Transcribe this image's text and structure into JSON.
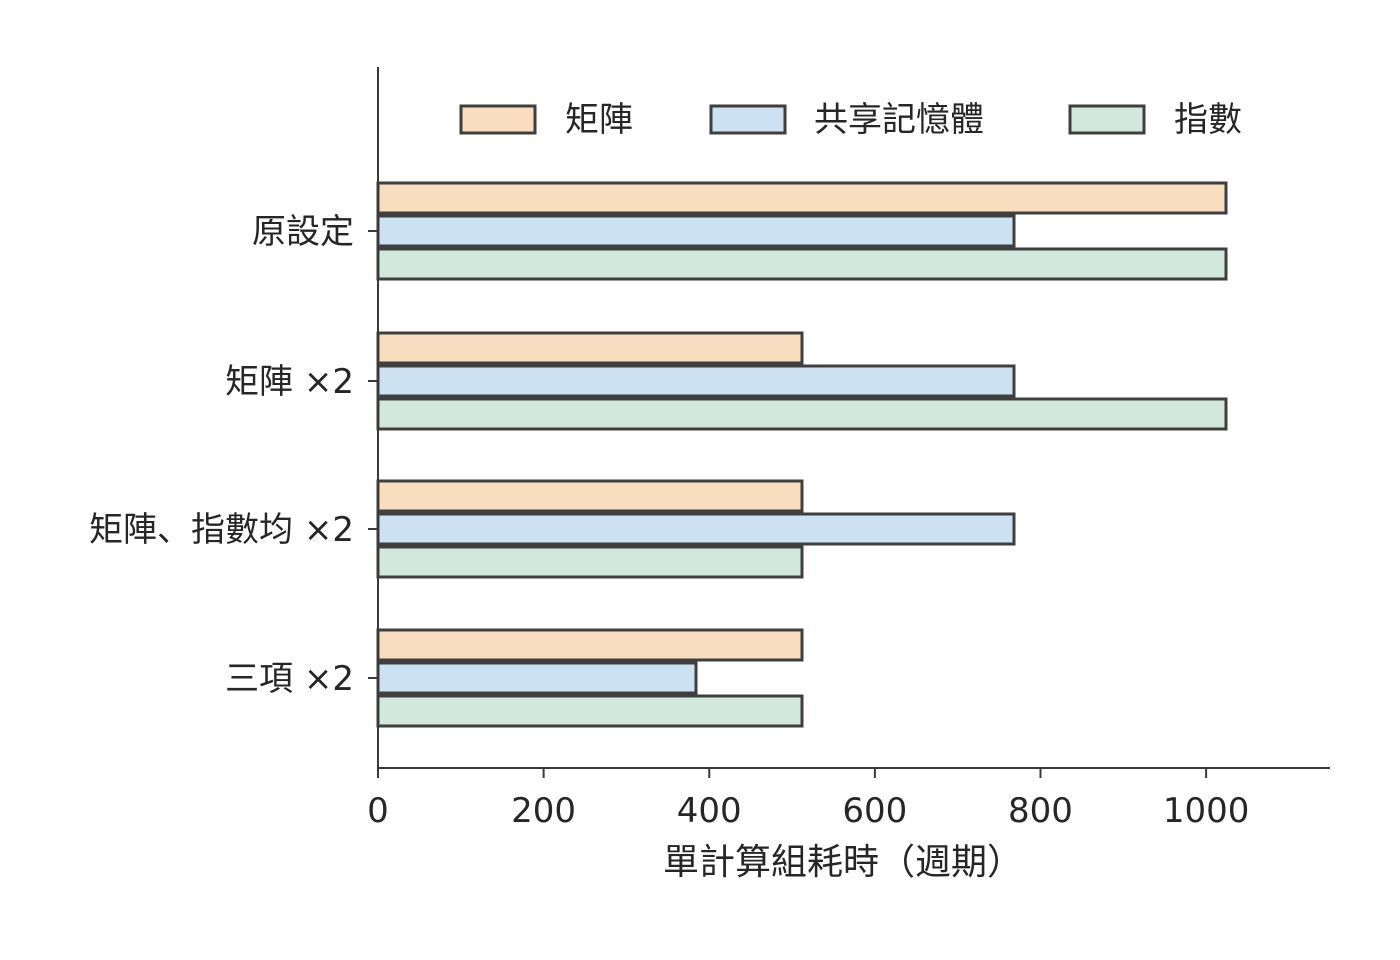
{
  "chart_data": {
    "type": "bar",
    "orientation": "horizontal",
    "categories": [
      "原設定",
      "矩陣 ×2",
      "矩陣、指數均 ×2",
      "三項 ×2"
    ],
    "series": [
      {
        "name": "矩陣",
        "color": "#F9DDBF",
        "values": [
          1024,
          512,
          512,
          512
        ]
      },
      {
        "name": "共享記憶體",
        "color": "#CCE2F2",
        "values": [
          768,
          768,
          768,
          384
        ]
      },
      {
        "name": "指數",
        "color": "#D2E8DC",
        "values": [
          1024,
          1024,
          512,
          512
        ]
      }
    ],
    "xlabel": "單計算組耗時（週期）",
    "ylabel": "",
    "title": "",
    "xlim": [
      0,
      1150
    ],
    "xticks": [
      0,
      200,
      400,
      600,
      800,
      1000
    ],
    "edge_color": "#3f3f3f",
    "legend_position": "top",
    "grid": false
  }
}
